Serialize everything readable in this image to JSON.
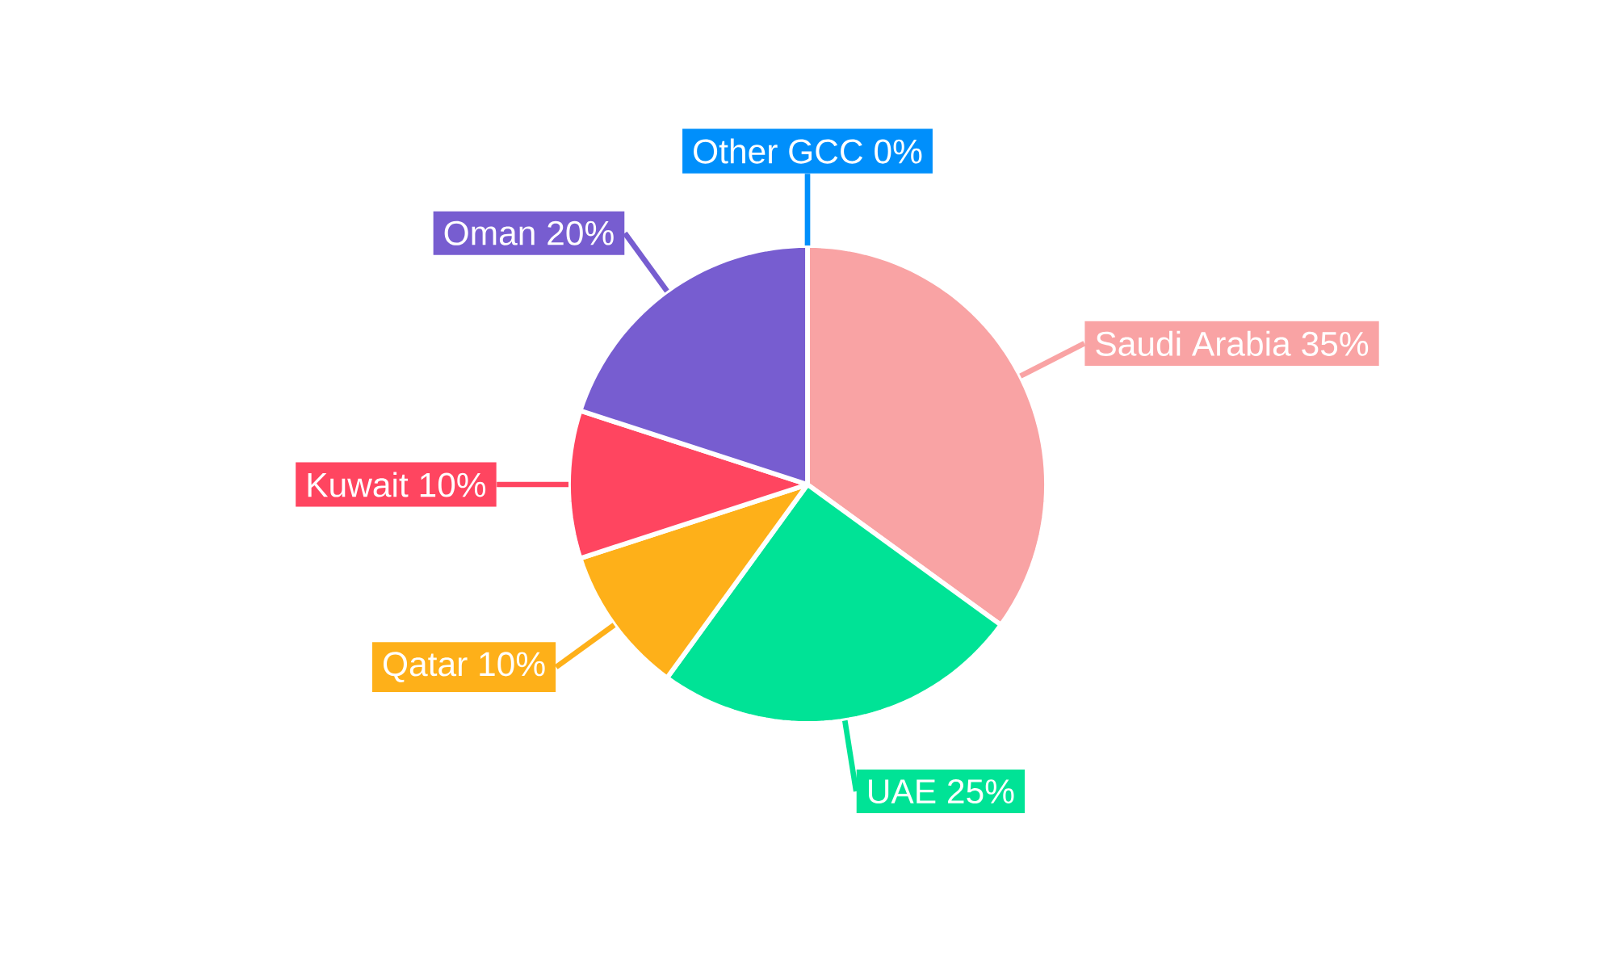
{
  "chart_data": {
    "type": "pie",
    "categories": [
      "Saudi Arabia",
      "UAE",
      "Qatar",
      "Kuwait",
      "Oman",
      "Other GCC"
    ],
    "values": [
      35,
      25,
      10,
      10,
      20,
      0
    ],
    "value_labels": [
      "35%",
      "25%",
      "10%",
      "10%",
      "20%",
      "0%"
    ],
    "colors": [
      "#f9a3a4",
      "#00e396",
      "#feb019",
      "#ff4560",
      "#775dd0",
      "#008ffb"
    ]
  }
}
